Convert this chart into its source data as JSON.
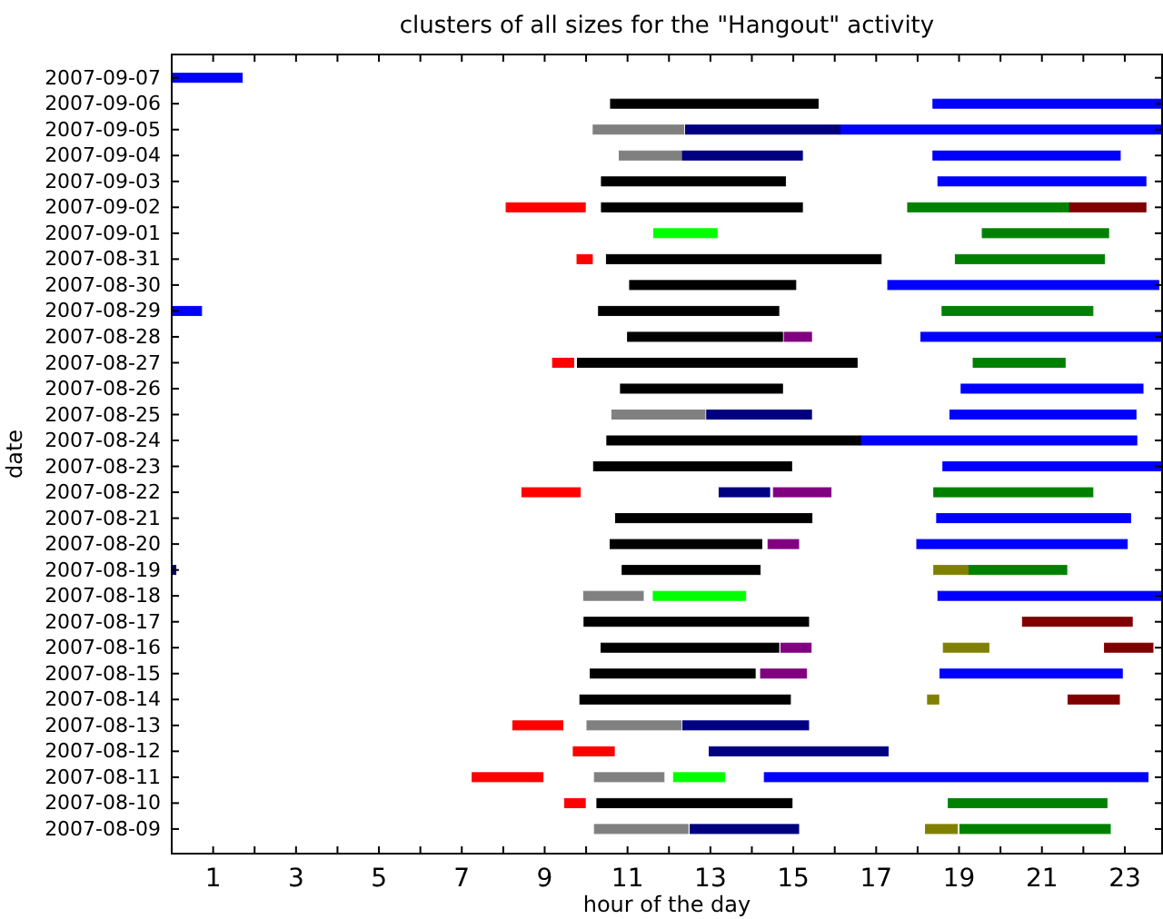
{
  "chart_data": {
    "type": "bar",
    "orientation": "horizontal",
    "title": "clusters of all sizes for the \"Hangout\" activity",
    "xlabel": "hour of the day",
    "ylabel": "date",
    "categories": [
      "2007-09-07",
      "2007-09-06",
      "2007-09-05",
      "2007-09-04",
      "2007-09-03",
      "2007-09-02",
      "2007-09-01",
      "2007-08-31",
      "2007-08-30",
      "2007-08-29",
      "2007-08-28",
      "2007-08-27",
      "2007-08-26",
      "2007-08-25",
      "2007-08-24",
      "2007-08-23",
      "2007-08-22",
      "2007-08-21",
      "2007-08-20",
      "2007-08-19",
      "2007-08-18",
      "2007-08-17",
      "2007-08-16",
      "2007-08-15",
      "2007-08-14",
      "2007-08-13",
      "2007-08-12",
      "2007-08-11",
      "2007-08-10",
      "2007-08-09"
    ],
    "xlim": [
      0,
      23.9
    ],
    "xticks": [
      1,
      {
        "value": 2,
        "label": null
      },
      3,
      {
        "value": 4,
        "label": null
      },
      5,
      {
        "value": 6,
        "label": null
      },
      7,
      {
        "value": 8,
        "label": null
      },
      9,
      {
        "value": 10,
        "label": null
      },
      11,
      {
        "value": 12,
        "label": null
      },
      13,
      {
        "value": 14,
        "label": null
      },
      15,
      {
        "value": 16,
        "label": null
      },
      17,
      {
        "value": 18,
        "label": null
      },
      19,
      {
        "value": 20,
        "label": null
      },
      21,
      {
        "value": 22,
        "label": null
      },
      23
    ],
    "grid": false,
    "series": [
      {
        "color": "#0000ff",
        "values": [
          1.7,
          5.53,
          7.77,
          4.52,
          5.02,
          null,
          null,
          null,
          6.54,
          0.72,
          5.82,
          null,
          4.39,
          4.49,
          6.67,
          5.29,
          null,
          4.68,
          5.08,
          null,
          5.41,
          null,
          null,
          4.4,
          null,
          null,
          null,
          9.26,
          null,
          null
        ],
        "base": [
          0,
          18.37,
          16.13,
          18.37,
          18.49,
          null,
          null,
          null,
          17.28,
          0,
          18.08,
          null,
          19.05,
          18.78,
          16.62,
          18.61,
          null,
          18.46,
          17.98,
          null,
          18.49,
          null,
          null,
          18.54,
          null,
          null,
          null,
          14.3,
          null,
          null
        ]
      },
      {
        "color": "#000080",
        "values": [
          null,
          null,
          3.73,
          2.9,
          null,
          null,
          null,
          null,
          null,
          null,
          null,
          null,
          null,
          2.53,
          null,
          null,
          1.22,
          null,
          null,
          0.1,
          null,
          null,
          null,
          null,
          null,
          3.04,
          4.32,
          null,
          null,
          2.62
        ],
        "base": [
          null,
          null,
          12.4,
          12.32,
          null,
          null,
          null,
          null,
          null,
          null,
          null,
          null,
          null,
          12.91,
          null,
          null,
          13.21,
          null,
          null,
          0,
          null,
          null,
          null,
          null,
          null,
          12.33,
          12.97,
          null,
          null,
          12.51
        ]
      },
      {
        "color": "#000000",
        "values": [
          null,
          5.01,
          null,
          null,
          4.44,
          4.85,
          null,
          6.63,
          4.01,
          4.35,
          3.74,
          6.75,
          3.91,
          null,
          6.12,
          4.78,
          null,
          4.74,
          3.66,
          3.33,
          null,
          5.42,
          4.29,
          3.98,
          5.08,
          null,
          null,
          null,
          4.71,
          null
        ],
        "base": [
          null,
          10.59,
          null,
          null,
          10.37,
          10.37,
          null,
          10.49,
          11.05,
          10.3,
          11.0,
          9.79,
          10.83,
          null,
          10.5,
          10.18,
          null,
          10.71,
          10.58,
          10.87,
          null,
          9.95,
          10.36,
          10.1,
          9.85,
          null,
          null,
          null,
          10.26,
          null
        ]
      },
      {
        "color": "#808080",
        "values": [
          null,
          null,
          2.19,
          1.49,
          null,
          null,
          null,
          null,
          null,
          null,
          null,
          null,
          null,
          2.25,
          null,
          null,
          null,
          null,
          null,
          null,
          1.44,
          null,
          null,
          null,
          null,
          2.27,
          null,
          1.68,
          null,
          2.26
        ],
        "base": [
          null,
          null,
          10.17,
          10.8,
          null,
          null,
          null,
          null,
          null,
          null,
          null,
          null,
          null,
          10.62,
          null,
          null,
          null,
          null,
          null,
          null,
          9.94,
          null,
          null,
          null,
          null,
          10.02,
          null,
          10.2,
          null,
          10.2
        ]
      },
      {
        "color": "#ff0000",
        "values": [
          null,
          null,
          null,
          null,
          null,
          1.91,
          null,
          0.37,
          null,
          null,
          null,
          0.51,
          null,
          null,
          null,
          null,
          1.41,
          null,
          null,
          null,
          null,
          null,
          null,
          null,
          null,
          1.21,
          0.99,
          1.71,
          0.5,
          null
        ],
        "base": [
          null,
          null,
          null,
          null,
          null,
          8.07,
          null,
          9.78,
          null,
          null,
          null,
          9.19,
          null,
          null,
          null,
          null,
          8.45,
          null,
          null,
          null,
          null,
          null,
          null,
          null,
          null,
          8.23,
          9.69,
          7.25,
          9.48,
          null
        ]
      },
      {
        "color": "#00ff00",
        "values": [
          null,
          null,
          null,
          null,
          null,
          null,
          1.53,
          null,
          null,
          null,
          null,
          null,
          null,
          null,
          null,
          null,
          null,
          null,
          null,
          null,
          2.23,
          null,
          null,
          null,
          null,
          null,
          null,
          1.23,
          null,
          null
        ],
        "base": [
          null,
          null,
          null,
          null,
          null,
          null,
          11.63,
          null,
          null,
          null,
          null,
          null,
          null,
          null,
          null,
          null,
          null,
          null,
          null,
          null,
          11.62,
          null,
          null,
          null,
          null,
          null,
          null,
          12.11,
          null,
          null
        ]
      },
      {
        "color": "#008000",
        "values": [
          null,
          null,
          null,
          null,
          null,
          3.91,
          3.05,
          3.6,
          null,
          3.64,
          null,
          2.22,
          null,
          null,
          null,
          null,
          3.84,
          null,
          null,
          2.38,
          null,
          null,
          null,
          null,
          null,
          null,
          null,
          null,
          3.83,
          3.63
        ],
        "base": [
          null,
          null,
          null,
          null,
          null,
          17.76,
          19.56,
          18.91,
          null,
          18.59,
          null,
          19.34,
          null,
          null,
          null,
          null,
          18.39,
          null,
          null,
          19.22,
          null,
          null,
          null,
          null,
          null,
          null,
          null,
          null,
          18.74,
          19.02
        ]
      },
      {
        "color": "#800000",
        "values": [
          null,
          null,
          null,
          null,
          null,
          1.84,
          null,
          null,
          null,
          null,
          null,
          null,
          null,
          null,
          null,
          null,
          null,
          null,
          null,
          null,
          null,
          2.65,
          1.17,
          null,
          1.24,
          null,
          null,
          null,
          null,
          null
        ],
        "base": [
          null,
          null,
          null,
          null,
          null,
          21.67,
          null,
          null,
          null,
          null,
          null,
          null,
          null,
          null,
          null,
          null,
          null,
          null,
          null,
          null,
          null,
          20.53,
          22.51,
          null,
          21.63,
          null,
          null,
          null,
          null,
          null
        ]
      },
      {
        "color": "#800080",
        "values": [
          null,
          null,
          null,
          null,
          null,
          null,
          null,
          null,
          null,
          null,
          0.66,
          null,
          null,
          null,
          null,
          null,
          1.39,
          null,
          0.74,
          null,
          null,
          null,
          0.73,
          1.11,
          null,
          null,
          null,
          null,
          null,
          null
        ],
        "base": [
          null,
          null,
          null,
          null,
          null,
          null,
          null,
          null,
          null,
          null,
          14.78,
          null,
          null,
          null,
          null,
          null,
          14.52,
          null,
          14.39,
          null,
          null,
          null,
          14.7,
          14.21,
          null,
          null,
          null,
          null,
          null,
          null
        ]
      },
      {
        "color": "#808000",
        "values": [
          null,
          null,
          null,
          null,
          null,
          null,
          null,
          null,
          null,
          null,
          null,
          null,
          null,
          null,
          null,
          null,
          null,
          null,
          null,
          0.83,
          null,
          null,
          1.1,
          null,
          0.27,
          null,
          null,
          null,
          null,
          0.77
        ],
        "base": [
          null,
          null,
          null,
          null,
          null,
          null,
          null,
          null,
          null,
          null,
          null,
          null,
          null,
          null,
          null,
          null,
          null,
          null,
          null,
          18.39,
          null,
          null,
          18.62,
          null,
          18.24,
          null,
          null,
          null,
          null,
          18.19
        ]
      }
    ]
  }
}
